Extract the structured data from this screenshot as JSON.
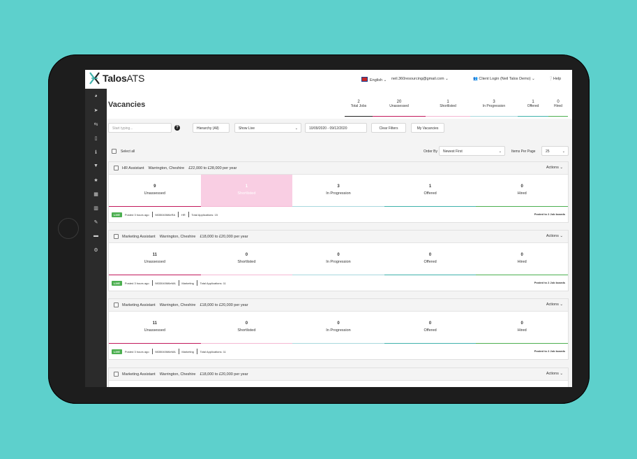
{
  "colors": {
    "background": "#5dd0cc",
    "sidebar": "#2b2b2b",
    "live_badge": "#4caf50",
    "active_stage": "#f9cee3",
    "stage_bars": [
      "#c2185b",
      "#f4b7d3",
      "#a8d8dd",
      "#3fb2ab",
      "#4caf50"
    ]
  },
  "topbar": {
    "logo_bold": "Talos",
    "logo_light": "ATS",
    "language": "English",
    "email": "neil.360resourcing@gmail.com",
    "client_login": "Client Login (Neil Talos Demo)",
    "help": "Help"
  },
  "sidebar": {
    "icons": [
      "dashboard-icon",
      "send-icon",
      "transfer-icon",
      "document-icon",
      "info-icon",
      "bookmark-icon",
      "star-icon",
      "calendar-icon",
      "chart-icon",
      "edit-icon",
      "card-icon",
      "settings-icon"
    ]
  },
  "header": {
    "title": "Vacancies",
    "stats": [
      {
        "value": "2",
        "label": "Total Jobs"
      },
      {
        "value": "20",
        "label": "Unassessed"
      },
      {
        "value": "1",
        "label": "Shortlisted"
      },
      {
        "value": "3",
        "label": "In Progression"
      },
      {
        "value": "1",
        "label": "Offered"
      },
      {
        "value": "0",
        "label": "Hired"
      }
    ]
  },
  "filters": {
    "search_placeholder": "Start typing...",
    "hierarchy": "Hierarchy (All)",
    "show": "Show Live",
    "date_range": "10/09/2020 - 09/12/2020",
    "clear": "Clear Filters",
    "my_vacancies": "My Vacancies"
  },
  "list_controls": {
    "select_all": "Select all",
    "order_by_label": "Order By",
    "order_by_value": "Newest First",
    "per_page_label": "Items Per Page",
    "per_page_value": "25"
  },
  "vacancies": [
    {
      "title": "HR Assistant",
      "location": "Warrington, Cheshire",
      "salary": "£22,000 to £28,000 per year",
      "actions": "Actions",
      "stages": [
        {
          "value": "9",
          "label": "Unassessed"
        },
        {
          "value": "1",
          "label": "Shortlisted"
        },
        {
          "value": "3",
          "label": "In Progression"
        },
        {
          "value": "1",
          "label": "Offered"
        },
        {
          "value": "0",
          "label": "Hired"
        }
      ],
      "status": "LIVE",
      "posted": "Posted 3 hours ago",
      "ref": "9835040M6eRA",
      "dept": "HR",
      "applications": "Total Applications: 15",
      "boards": "Posted to 2 Job boards"
    },
    {
      "title": "Marketing Assistant",
      "location": "Warrington, Cheshire",
      "salary": "£18,000 to £20,000 per year",
      "actions": "Actions",
      "stages": [
        {
          "value": "11",
          "label": "Unassessed"
        },
        {
          "value": "0",
          "label": "Shortlisted"
        },
        {
          "value": "0",
          "label": "In Progression"
        },
        {
          "value": "0",
          "label": "Offered"
        },
        {
          "value": "0",
          "label": "Hired"
        }
      ],
      "status": "LIVE",
      "posted": "Posted 3 hours ago",
      "ref": "9833040M6eMA",
      "dept": "Marketing",
      "applications": "Total Applications: 11",
      "boards": "Posted to 2 Job boards"
    },
    {
      "title": "Marketing Assistant",
      "location": "Warrington, Cheshire",
      "salary": "£18,000 to £20,000 per year",
      "actions": "Actions",
      "stages": [
        {
          "value": "11",
          "label": "Unassessed"
        },
        {
          "value": "0",
          "label": "Shortlisted"
        },
        {
          "value": "0",
          "label": "In Progression"
        },
        {
          "value": "0",
          "label": "Offered"
        },
        {
          "value": "0",
          "label": "Hired"
        }
      ],
      "status": "LIVE",
      "posted": "Posted 3 hours ago",
      "ref": "9835040M6eMA",
      "dept": "Marketing",
      "applications": "Total Applications: 11",
      "boards": "Posted to 2 Job boards"
    },
    {
      "title": "Marketing Assistant",
      "location": "Warrington, Cheshire",
      "salary": "£18,000 to £20,000 per year",
      "actions": "Actions"
    }
  ]
}
